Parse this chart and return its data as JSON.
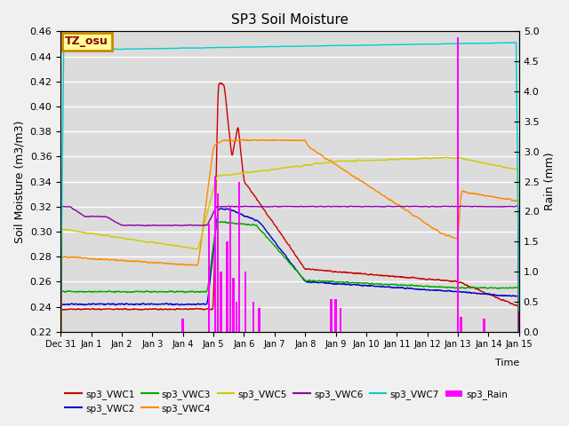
{
  "title": "SP3 Soil Moisture",
  "ylabel_left": "Soil Moisture (m3/m3)",
  "ylabel_right": "Rain (mm)",
  "xlabel": "Time",
  "ylim_left": [
    0.22,
    0.46
  ],
  "ylim_right": [
    0.0,
    5.0
  ],
  "bg_color": "#dcdcdc",
  "plot_bg_color": "#dcdcdc",
  "label_box_text": "TZ_osu",
  "label_box_color": "#ffff99",
  "label_box_edge": "#cc8800",
  "colors": {
    "VWC1": "#cc0000",
    "VWC2": "#0000cc",
    "VWC3": "#00aa00",
    "VWC4": "#ff8800",
    "VWC5": "#cccc00",
    "VWC6": "#8800aa",
    "VWC7": "#00cccc",
    "Rain": "#ff00ff"
  },
  "xtick_labels": [
    "Dec 31",
    "Jan 1",
    "Jan 2",
    "Jan 3",
    "Jan 4",
    "Jan 5",
    "Jan 6",
    "Jan 7",
    "Jan 8",
    "Jan 9",
    "Jan 10",
    "Jan 11",
    "Jan 12",
    "Jan 13",
    "Jan 14",
    "Jan 15"
  ],
  "yticks_left": [
    0.22,
    0.24,
    0.26,
    0.28,
    0.3,
    0.32,
    0.34,
    0.36,
    0.38,
    0.4,
    0.42,
    0.44,
    0.46
  ],
  "yticks_right": [
    0.0,
    0.5,
    1.0,
    1.5,
    2.0,
    2.5,
    3.0,
    3.5,
    4.0,
    4.5,
    5.0
  ]
}
